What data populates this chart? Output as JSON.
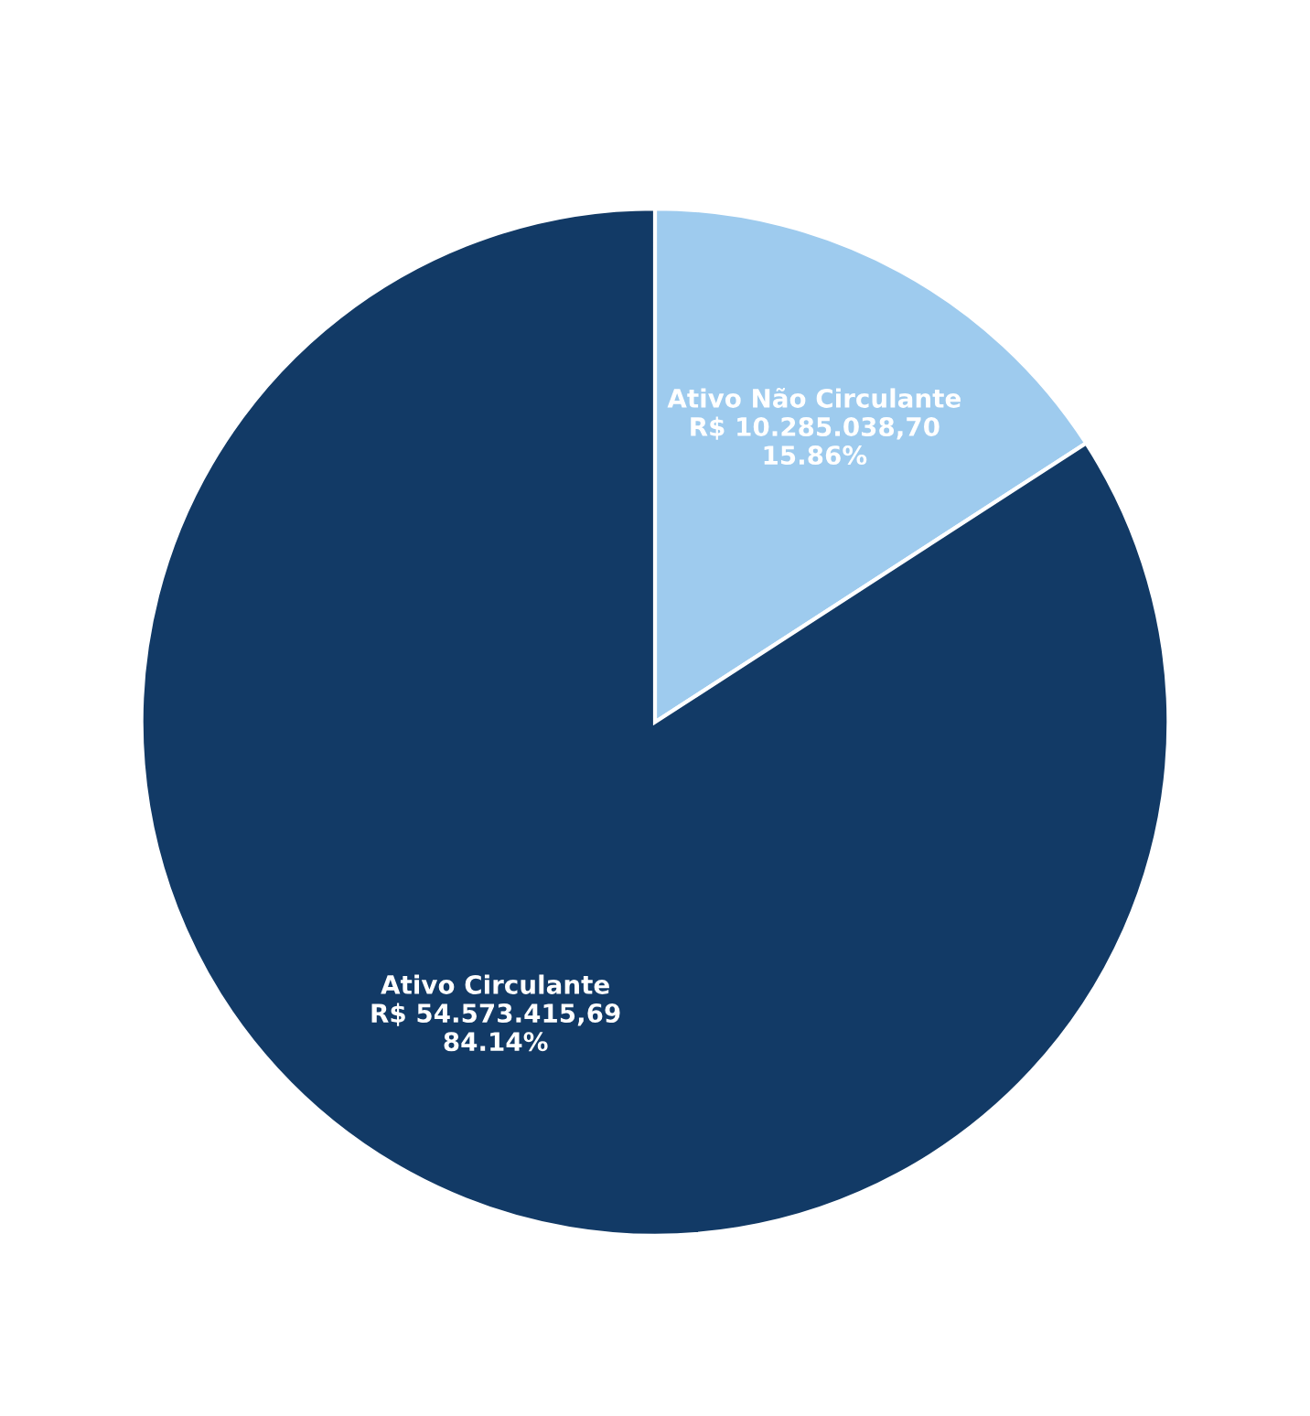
{
  "chart_data": {
    "type": "pie",
    "categories": [
      "Ativo Não Circulante",
      "Ativo Circulante"
    ],
    "values": [
      10285038.7,
      54573415.69
    ],
    "value_labels": [
      "R$ 10.285.038,70\n15.86%",
      "R$ 54.573.415,69\n84.14%"
    ],
    "colors": [
      "#9ecbee",
      "#123a66"
    ]
  }
}
